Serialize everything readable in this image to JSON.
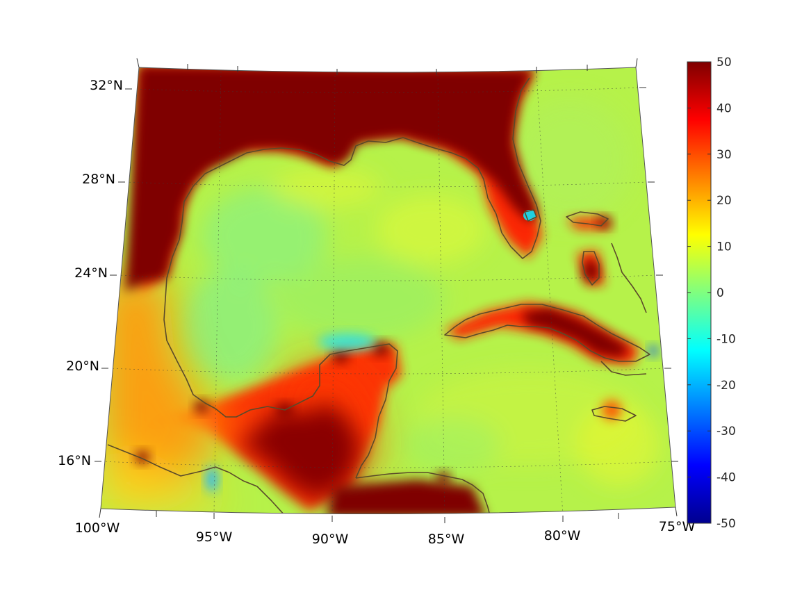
{
  "map": {
    "projection": "conic",
    "lon_range": [
      -100,
      -75
    ],
    "lat_range": [
      14,
      33
    ],
    "x_tick_labels": [
      "100°W",
      "95°W",
      "90°W",
      "85°W",
      "80°W",
      "75°W"
    ],
    "y_tick_labels": [
      "32°N",
      "28°N",
      "24°N",
      "20°N",
      "16°N"
    ],
    "colormap": "jet",
    "land_color": "#7f0000",
    "coastline_color": "#5a4a2a"
  },
  "colorbar": {
    "range": [
      -50,
      50
    ],
    "tick_labels": [
      "50",
      "40",
      "30",
      "20",
      "10",
      "0",
      "-10",
      "-20",
      "-30",
      "-40",
      "-50"
    ]
  }
}
